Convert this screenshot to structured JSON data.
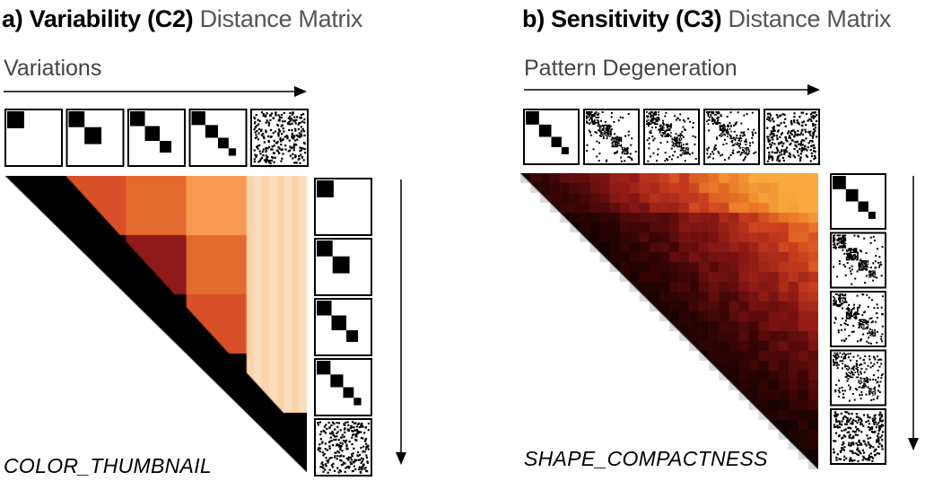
{
  "panels": [
    {
      "id": "a",
      "title_bold": "a) Variability (C2)",
      "title_light": "Distance Matrix",
      "axis_label": "Variations",
      "method_label": "COLOR_THUMBNAIL",
      "thumbnails": [
        "block-1",
        "block-2",
        "block-3",
        "block-4",
        "noise"
      ],
      "matrix": {
        "type": "heatmap",
        "description_colors": {
          "low": "#000000",
          "high": "#fde4c4"
        },
        "values": [
          [
            0.0,
            0.55,
            0.62,
            0.72,
            0.9
          ],
          [
            0.55,
            0.0,
            0.4,
            0.62,
            0.9
          ],
          [
            0.62,
            0.4,
            0.0,
            0.55,
            0.9
          ],
          [
            0.72,
            0.62,
            0.55,
            0.0,
            0.9
          ],
          [
            0.9,
            0.9,
            0.9,
            0.9,
            0.0
          ]
        ]
      }
    },
    {
      "id": "b",
      "title_bold": "b) Sensitivity (C3)",
      "title_light": "Distance Matrix",
      "axis_label": "Pattern Degeneration",
      "method_label": "SHAPE_COMPACTNESS",
      "thumbnails": [
        "block-diagonal",
        "degenerated-1",
        "degenerated-2",
        "degenerated-3",
        "noise"
      ],
      "matrix": {
        "type": "heatmap",
        "description_colors": {
          "low": "#000000",
          "high": "#f5a033"
        }
      }
    }
  ]
}
